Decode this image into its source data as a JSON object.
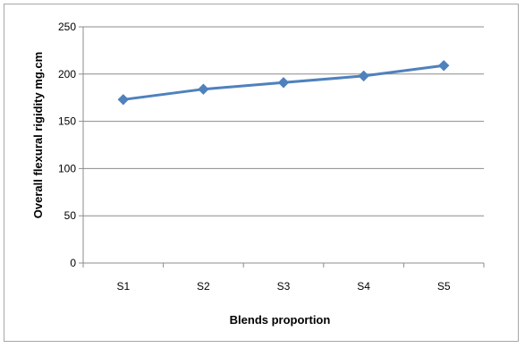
{
  "chart_data": {
    "type": "line",
    "categories": [
      "S1",
      "S2",
      "S3",
      "S4",
      "S5"
    ],
    "series": [
      {
        "values": [
          173,
          184,
          191,
          198,
          209
        ],
        "color": "#4f81bd",
        "marker": "diamond"
      }
    ],
    "xlabel": "Blends proportion",
    "ylabel": "Overall flexural rigidity mg.cm",
    "ylim": [
      0,
      250
    ],
    "yticks": [
      0,
      50,
      100,
      150,
      200,
      250
    ],
    "grid": true,
    "legend": "none"
  }
}
